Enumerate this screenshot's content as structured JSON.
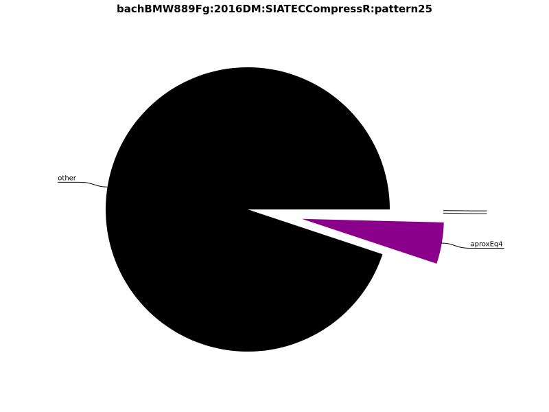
{
  "chart_data": {
    "type": "pie",
    "title": "bachBMW889Fg:2016DM:SIATECCompressR:pattern25",
    "slices": [
      {
        "label": "other",
        "value": 94.9,
        "color": "#000000",
        "exploded": false
      },
      {
        "label": "aproxEq4",
        "value": 4.7,
        "color": "#8b008b",
        "exploded": true
      },
      {
        "label": "",
        "value": 0.2,
        "color": "#ffffff",
        "exploded": true
      },
      {
        "label": "",
        "value": 0.2,
        "color": "#ffffff",
        "exploded": true
      }
    ],
    "start_angle_deg": 0,
    "direction": "counterclockwise",
    "legend": "none"
  }
}
